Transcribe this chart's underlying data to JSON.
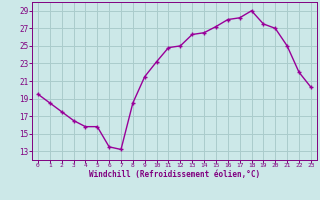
{
  "x": [
    0,
    1,
    2,
    3,
    4,
    5,
    6,
    7,
    8,
    9,
    10,
    11,
    12,
    13,
    14,
    15,
    16,
    17,
    18,
    19,
    20,
    21,
    22,
    23
  ],
  "y": [
    19.5,
    18.5,
    17.5,
    16.5,
    15.8,
    15.8,
    13.5,
    13.2,
    18.5,
    21.5,
    23.2,
    24.8,
    25.0,
    26.3,
    26.5,
    27.2,
    28.0,
    28.2,
    29.0,
    27.5,
    27.0,
    25.0,
    22.0,
    20.3
  ],
  "line_color": "#990099",
  "marker": "+",
  "bg_color": "#cce8e8",
  "grid_color": "#aacccc",
  "xlabel": "Windchill (Refroidissement éolien,°C)",
  "xlabel_color": "#800080",
  "yticks": [
    13,
    15,
    17,
    19,
    21,
    23,
    25,
    27,
    29
  ],
  "xticks": [
    0,
    1,
    2,
    3,
    4,
    5,
    6,
    7,
    8,
    9,
    10,
    11,
    12,
    13,
    14,
    15,
    16,
    17,
    18,
    19,
    20,
    21,
    22,
    23
  ],
  "ylim": [
    12.0,
    30.0
  ],
  "xlim": [
    -0.5,
    23.5
  ],
  "tick_color": "#800080",
  "font_family": "monospace",
  "marker_size": 3,
  "line_width": 1.0
}
